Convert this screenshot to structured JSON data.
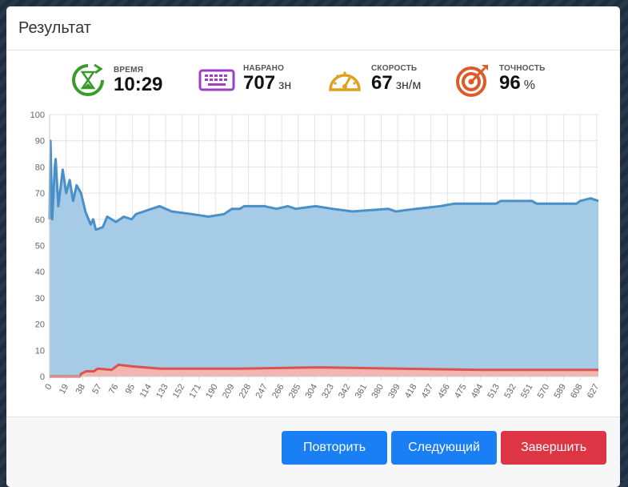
{
  "title": "Результат",
  "stats": [
    {
      "label": "ВРЕМЯ",
      "value": "10:29"
    },
    {
      "label": "НАБРАНО",
      "value": 707,
      "unit": "зн"
    },
    {
      "label": "СКОРОСТЬ",
      "value": 67,
      "unit": "зн/м"
    },
    {
      "label": "ТОЧНОСТЬ",
      "value": 96,
      "unit": "%"
    }
  ],
  "chart_data": {
    "type": "area",
    "xlim": [
      0,
      629
    ],
    "xticks": [
      0,
      19,
      38,
      57,
      76,
      95,
      114,
      133,
      152,
      171,
      190,
      209,
      228,
      247,
      266,
      285,
      304,
      323,
      342,
      361,
      380,
      399,
      418,
      437,
      456,
      475,
      494,
      513,
      532,
      551,
      570,
      589,
      608,
      627
    ],
    "ylim": [
      0,
      100
    ],
    "yticks": [
      0,
      10,
      20,
      30,
      40,
      50,
      60,
      70,
      80,
      90,
      100
    ],
    "grid": true,
    "series": [
      {
        "color": "#4a90c8",
        "fill_color": "#a6cbe6",
        "x": [
          0,
          1,
          3,
          6,
          7,
          10,
          15,
          19,
          23,
          27,
          31,
          36,
          41,
          47,
          50,
          53,
          61,
          66,
          76,
          85,
          94,
          99,
          117,
          126,
          140,
          163,
          182,
          200,
          209,
          218,
          223,
          246,
          260,
          273,
          282,
          305,
          324,
          347,
          388,
          397,
          420,
          448,
          464,
          512,
          517,
          553,
          558,
          604,
          608,
          620,
          629
        ],
        "values": [
          60,
          90,
          60,
          80,
          83,
          65,
          79,
          70,
          75,
          67,
          73,
          70,
          63,
          58,
          60,
          56,
          57,
          61,
          59,
          61,
          60,
          62,
          64,
          65,
          63,
          62,
          61,
          62,
          64,
          64,
          65,
          65,
          64,
          65,
          64,
          65,
          64,
          63,
          64,
          63,
          64,
          65,
          66,
          66,
          67,
          67,
          66,
          66,
          67,
          68,
          67
        ]
      },
      {
        "color": "#d9534f",
        "fill_color": "#f2b5b0",
        "x": [
          0,
          35,
          36,
          42,
          51,
          55,
          71,
          79,
          90,
          108,
          127,
          218,
          310,
          402,
          494,
          493,
          629
        ],
        "values": [
          0,
          0,
          1,
          2,
          2,
          3,
          2.5,
          4.5,
          4,
          3.5,
          3,
          3,
          3.5,
          3,
          2.5,
          2.5,
          2.5
        ]
      }
    ]
  },
  "buttons": [
    "Повторить",
    "Следующий",
    "Завершить"
  ]
}
